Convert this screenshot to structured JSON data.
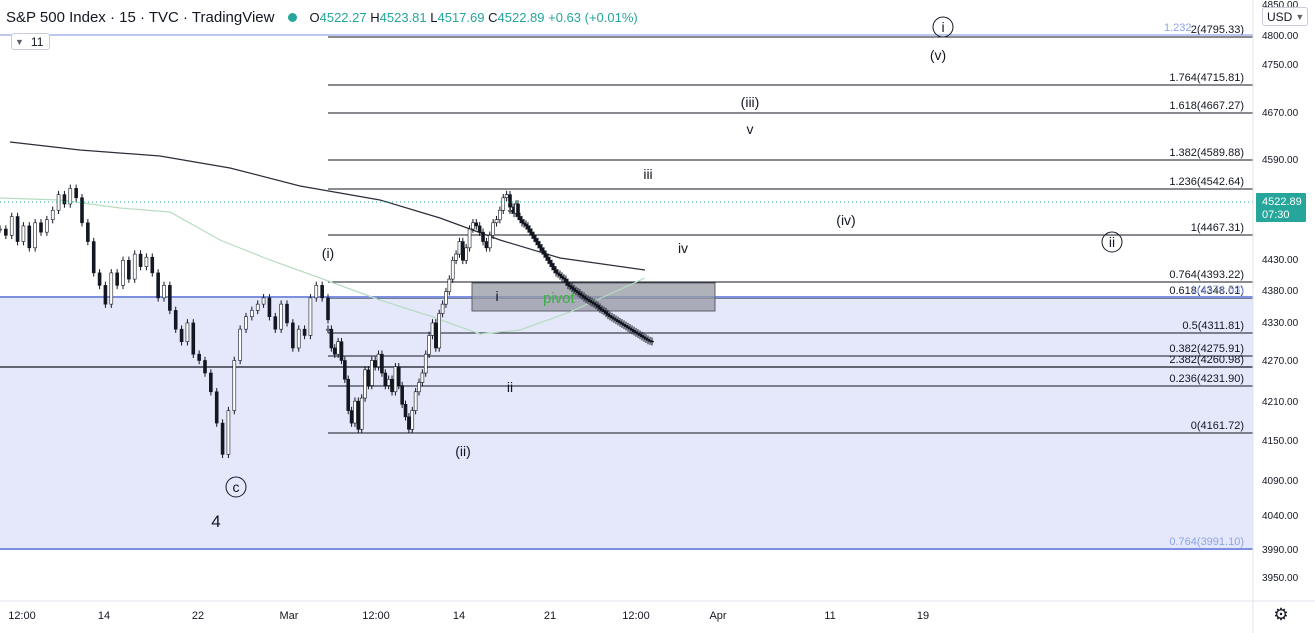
{
  "header": {
    "title": "S&P 500 Index · 15 · TVC · TradingView",
    "status_color": "#26a69a",
    "ohlc": [
      {
        "label": "O",
        "value": "4522.27"
      },
      {
        "label": "H",
        "value": "4523.81"
      },
      {
        "label": "L",
        "value": "4517.69"
      },
      {
        "label": "C",
        "value": "4522.89"
      },
      {
        "label": "",
        "value": "+0.63 (+0.01%)"
      }
    ],
    "collapsed_indicator_count": "11",
    "currency": "USD"
  },
  "settings_icon": "gear-icon",
  "chart_data": {
    "type": "line",
    "symbol": "S&P 500 Index",
    "interval": "15",
    "ylim": [
      3920,
      4860
    ],
    "y_ticks": [
      "4850.00",
      "4800.00",
      "4750.00",
      "4670.00",
      "4590.00",
      "4430.00",
      "4380.00",
      "4330.00",
      "4270.00",
      "4210.00",
      "4150.00",
      "4090.00",
      "4040.00",
      "3990.00",
      "3950.00"
    ],
    "x_ticks": [
      "12:00",
      "14",
      "22",
      "Mar",
      "12:00",
      "14",
      "21",
      "12:00",
      "Apr",
      "11",
      "19"
    ],
    "last_price": {
      "value": "4522.89",
      "countdown": "07:30",
      "color": "#26a69a"
    },
    "fib_levels": [
      {
        "label": "2(4795.33)",
        "value": 4795.33
      },
      {
        "label": "1.764(4715.81)",
        "value": 4715.81
      },
      {
        "label": "1.618(4667.27)",
        "value": 4667.27
      },
      {
        "label": "1.382(4589.88)",
        "value": 4589.88
      },
      {
        "label": "1.236(4542.64)",
        "value": 4542.64
      },
      {
        "label": "1(4467.31)",
        "value": 4467.31
      },
      {
        "label": "0.764(4393.22)",
        "value": 4393.22
      },
      {
        "label": "0.618(4348.01)",
        "value": 4348.01
      },
      {
        "label": "0.5(4311.81)",
        "value": 4311.81
      },
      {
        "label": "0.382(4275.91)",
        "value": 4275.91
      },
      {
        "label": "2.382(4260.98)",
        "value": 4260.98
      },
      {
        "label": "0.236(4231.90)",
        "value": 4231.9
      },
      {
        "label": "0(4161.72)",
        "value": 4161.72
      }
    ],
    "blue_fib_levels": [
      {
        "label": "1.232",
        "value": 4795.33
      },
      {
        "label": "1(4374.53)",
        "value": 4374.53
      },
      {
        "label": "0.764(3991.10)",
        "value": 3991.1
      }
    ],
    "pivot_zone": {
      "label": "pivot",
      "high": 4393,
      "low": 4348
    },
    "wave_labels": [
      {
        "text": "i",
        "circled": true
      },
      {
        "text": "(v)"
      },
      {
        "text": "(iii)"
      },
      {
        "text": "v"
      },
      {
        "text": "iii"
      },
      {
        "text": "(iv)"
      },
      {
        "text": "iv"
      },
      {
        "text": "ii",
        "circled": true
      },
      {
        "text": "(i)"
      },
      {
        "text": "i"
      },
      {
        "text": "ii"
      },
      {
        "text": "(ii)"
      },
      {
        "text": "c",
        "circled": true
      },
      {
        "text": "4"
      }
    ],
    "price_series": [
      [
        4490,
        4480,
        4510,
        4470,
        4495,
        4460,
        4500,
        4485,
        4505,
        4520,
        4545,
        4530,
        4555,
        4540,
        4500,
        4470,
        4420,
        4400,
        4370,
        4420,
        4400,
        4440,
        4410,
        4450,
        4430,
        4445,
        4420,
        4380,
        4400,
        4360,
        4330,
        4310,
        4340,
        4290,
        4280,
        4260,
        4230,
        4180,
        4130,
        4200,
        4280,
        4330,
        4350,
        4360,
        4370,
        4380,
        4350,
        4330,
        4370,
        4340,
        4300,
        4330,
        4320,
        4380,
        4400,
        4380,
        4345
      ],
      [
        4330,
        4300,
        4290,
        4310,
        4280,
        4250,
        4200,
        4180,
        4215,
        4170,
        4220,
        4265,
        4240,
        4280,
        4270,
        4290,
        4260,
        4240,
        4250,
        4230,
        4270,
        4240,
        4210,
        4190,
        4170,
        4200,
        4230,
        4245,
        4260,
        4290,
        4320,
        4340,
        4300,
        4355,
        4370,
        4390,
        4410,
        4440,
        4450,
        4470,
        4440,
        4460,
        4490,
        4500,
        4495,
        4485,
        4470,
        4460,
        4480,
        4500,
        4505,
        4520,
        4540,
        4545,
        4525
      ],
      [
        4520,
        4525,
        4515,
        4530,
        4510,
        4505,
        4500,
        4498,
        4495,
        4490,
        4485,
        4480,
        4475,
        4470,
        4465,
        4460,
        4455,
        4450,
        4445,
        4440,
        4435,
        4430,
        4425,
        4420,
        4418,
        4415,
        4412,
        4410,
        4405,
        4400,
        4398,
        4395,
        4392,
        4390,
        4388,
        4385,
        4383,
        4380,
        4378,
        4376,
        4374,
        4372,
        4370,
        4368,
        4365,
        4362,
        4360,
        4358,
        4355,
        4352,
        4350,
        4348,
        4346,
        4344,
        4342,
        4340,
        4338,
        4336,
        4334,
        4332,
        4330,
        4328,
        4326,
        4324,
        4322,
        4320,
        4318,
        4316,
        4314,
        4312,
        4311,
        4310
      ]
    ],
    "moving_averages": [
      {
        "name": "",
        "color": "#2a2e39"
      },
      {
        "name": "",
        "color": "#b7dcc0"
      }
    ]
  }
}
